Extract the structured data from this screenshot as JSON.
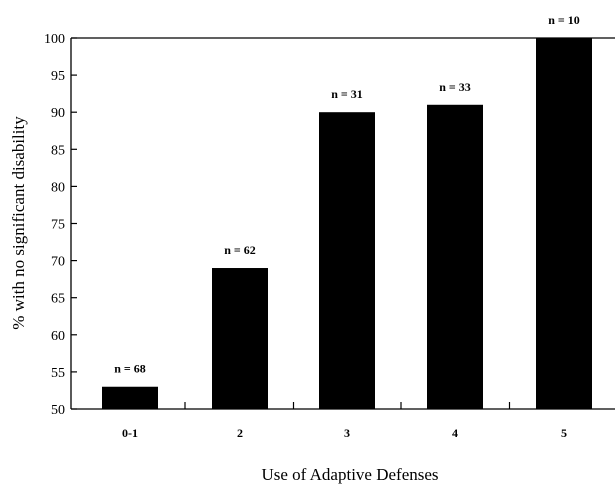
{
  "chart_data": {
    "type": "bar",
    "title": "",
    "xlabel": "Use of Adaptive Defenses",
    "ylabel": "% with no significant disability",
    "categories": [
      "0-1",
      "2",
      "3",
      "4",
      "5"
    ],
    "values": [
      53,
      69,
      90,
      91,
      100
    ],
    "data_labels": [
      "n = 68",
      "n = 62",
      "n = 31",
      "n = 33",
      "n = 10"
    ],
    "ylim": [
      50,
      100
    ],
    "yticks": [
      50,
      55,
      60,
      65,
      70,
      75,
      80,
      85,
      90,
      95,
      100
    ],
    "grid": false,
    "legend": "none",
    "bar_color": "#000000"
  }
}
